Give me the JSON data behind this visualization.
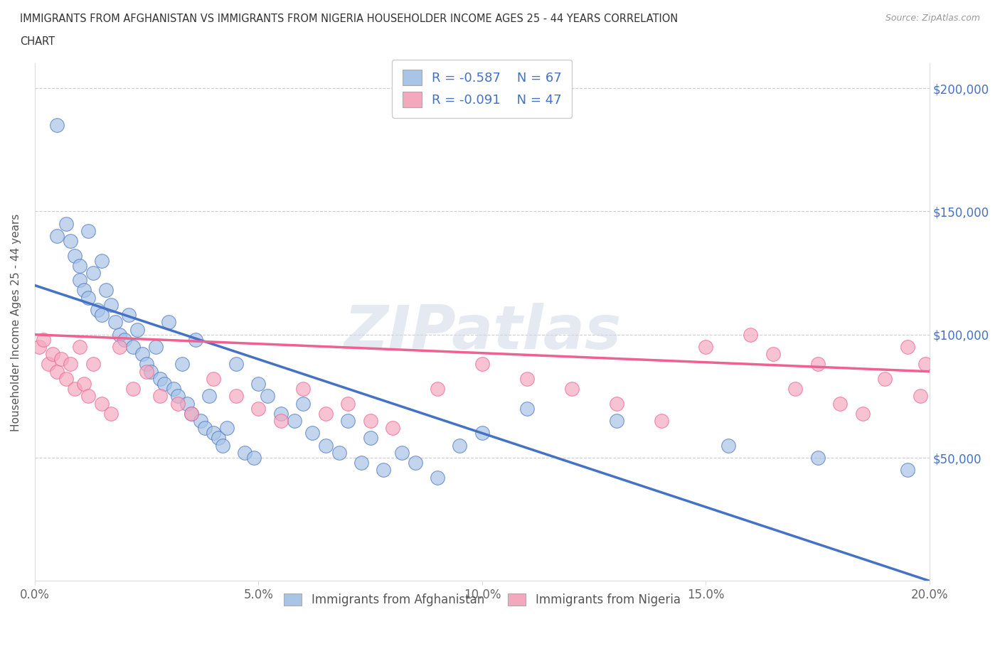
{
  "title_line1": "IMMIGRANTS FROM AFGHANISTAN VS IMMIGRANTS FROM NIGERIA HOUSEHOLDER INCOME AGES 25 - 44 YEARS CORRELATION",
  "title_line2": "CHART",
  "source": "Source: ZipAtlas.com",
  "ylabel": "Householder Income Ages 25 - 44 years",
  "watermark": "ZIPatlas",
  "afghanistan_R": -0.587,
  "afghanistan_N": 67,
  "nigeria_R": -0.091,
  "nigeria_N": 47,
  "afghanistan_color": "#a8c4e6",
  "nigeria_color": "#f4a8be",
  "afghanistan_line_color": "#4472c4",
  "nigeria_line_color": "#f06090",
  "xlim": [
    0.0,
    0.2
  ],
  "ylim": [
    0,
    210000
  ],
  "yticks": [
    0,
    50000,
    100000,
    150000,
    200000
  ],
  "right_ytick_labels": [
    "",
    "$50,000",
    "$100,000",
    "$150,000",
    "$200,000"
  ],
  "xticks": [
    0.0,
    0.05,
    0.1,
    0.15,
    0.2
  ],
  "xtick_labels": [
    "0.0%",
    "5.0%",
    "10.0%",
    "15.0%",
    "20.0%"
  ],
  "afg_line_x0": 0.0,
  "afg_line_y0": 120000,
  "afg_line_x1": 0.2,
  "afg_line_y1": 0,
  "nig_line_x0": 0.0,
  "nig_line_y0": 100000,
  "nig_line_x1": 0.2,
  "nig_line_y1": 85000,
  "afghanistan_scatter_x": [
    0.005,
    0.005,
    0.007,
    0.008,
    0.009,
    0.01,
    0.01,
    0.011,
    0.012,
    0.012,
    0.013,
    0.014,
    0.015,
    0.015,
    0.016,
    0.017,
    0.018,
    0.019,
    0.02,
    0.021,
    0.022,
    0.023,
    0.024,
    0.025,
    0.026,
    0.027,
    0.028,
    0.029,
    0.03,
    0.031,
    0.032,
    0.033,
    0.034,
    0.035,
    0.036,
    0.037,
    0.038,
    0.039,
    0.04,
    0.041,
    0.042,
    0.043,
    0.045,
    0.047,
    0.049,
    0.05,
    0.052,
    0.055,
    0.058,
    0.06,
    0.062,
    0.065,
    0.068,
    0.07,
    0.073,
    0.075,
    0.078,
    0.082,
    0.085,
    0.09,
    0.095,
    0.1,
    0.11,
    0.13,
    0.155,
    0.175,
    0.195
  ],
  "afghanistan_scatter_y": [
    185000,
    140000,
    145000,
    138000,
    132000,
    128000,
    122000,
    118000,
    115000,
    142000,
    125000,
    110000,
    108000,
    130000,
    118000,
    112000,
    105000,
    100000,
    98000,
    108000,
    95000,
    102000,
    92000,
    88000,
    85000,
    95000,
    82000,
    80000,
    105000,
    78000,
    75000,
    88000,
    72000,
    68000,
    98000,
    65000,
    62000,
    75000,
    60000,
    58000,
    55000,
    62000,
    88000,
    52000,
    50000,
    80000,
    75000,
    68000,
    65000,
    72000,
    60000,
    55000,
    52000,
    65000,
    48000,
    58000,
    45000,
    52000,
    48000,
    42000,
    55000,
    60000,
    70000,
    65000,
    55000,
    50000,
    45000
  ],
  "nigeria_scatter_x": [
    0.001,
    0.002,
    0.003,
    0.004,
    0.005,
    0.006,
    0.007,
    0.008,
    0.009,
    0.01,
    0.011,
    0.012,
    0.013,
    0.015,
    0.017,
    0.019,
    0.022,
    0.025,
    0.028,
    0.032,
    0.035,
    0.04,
    0.045,
    0.05,
    0.055,
    0.06,
    0.065,
    0.07,
    0.075,
    0.08,
    0.09,
    0.1,
    0.11,
    0.12,
    0.13,
    0.14,
    0.15,
    0.16,
    0.165,
    0.17,
    0.175,
    0.18,
    0.185,
    0.19,
    0.195,
    0.198,
    0.199
  ],
  "nigeria_scatter_y": [
    95000,
    98000,
    88000,
    92000,
    85000,
    90000,
    82000,
    88000,
    78000,
    95000,
    80000,
    75000,
    88000,
    72000,
    68000,
    95000,
    78000,
    85000,
    75000,
    72000,
    68000,
    82000,
    75000,
    70000,
    65000,
    78000,
    68000,
    72000,
    65000,
    62000,
    78000,
    88000,
    82000,
    78000,
    72000,
    65000,
    95000,
    100000,
    92000,
    78000,
    88000,
    72000,
    68000,
    82000,
    95000,
    75000,
    88000
  ]
}
